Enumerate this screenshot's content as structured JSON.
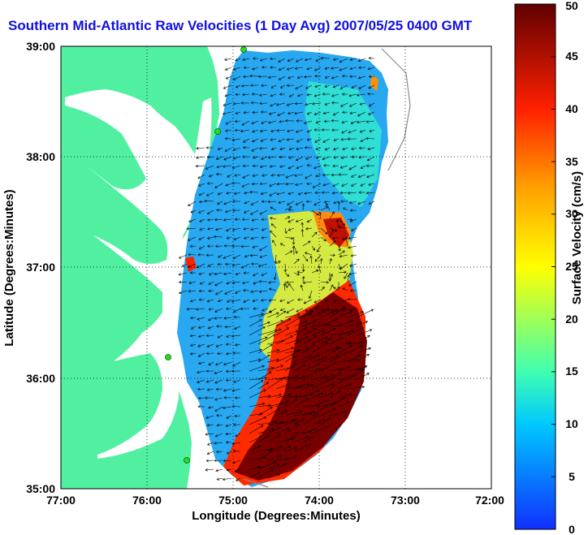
{
  "title": "Southern Mid-Atlantic Raw Velocities (1 Day Avg) 2007/05/25 0400 GMT",
  "x_axis": {
    "label": "Longitude (Degrees:Minutes)",
    "ticks": [
      "77:00",
      "76:00",
      "75:00",
      "74:00",
      "73:00",
      "72:00"
    ],
    "range": [
      -77,
      -72
    ]
  },
  "y_axis": {
    "label": "Latitude (Degrees:Minutes)",
    "ticks": [
      "39:00",
      "38:00",
      "37:00",
      "36:00",
      "35:00"
    ],
    "range": [
      35,
      39
    ]
  },
  "colorbar": {
    "label": "Surface Velocity (cm/s)",
    "ticks": [
      "0",
      "5",
      "10",
      "15",
      "20",
      "25",
      "30",
      "35",
      "40",
      "45",
      "50"
    ],
    "range": [
      0,
      50
    ],
    "colors": [
      "#1030ff",
      "#00a0ff",
      "#00f0ff",
      "#40ffb0",
      "#b0ff40",
      "#ffff00",
      "#ffb000",
      "#ff4000",
      "#d00000",
      "#600000"
    ]
  },
  "colors": {
    "land": "#50f0a0",
    "ocean": "#ffffff",
    "grid": "#000000",
    "title": "#1010e0",
    "station": "#20e020"
  },
  "grid": "dotted",
  "stations_shown": 5
}
